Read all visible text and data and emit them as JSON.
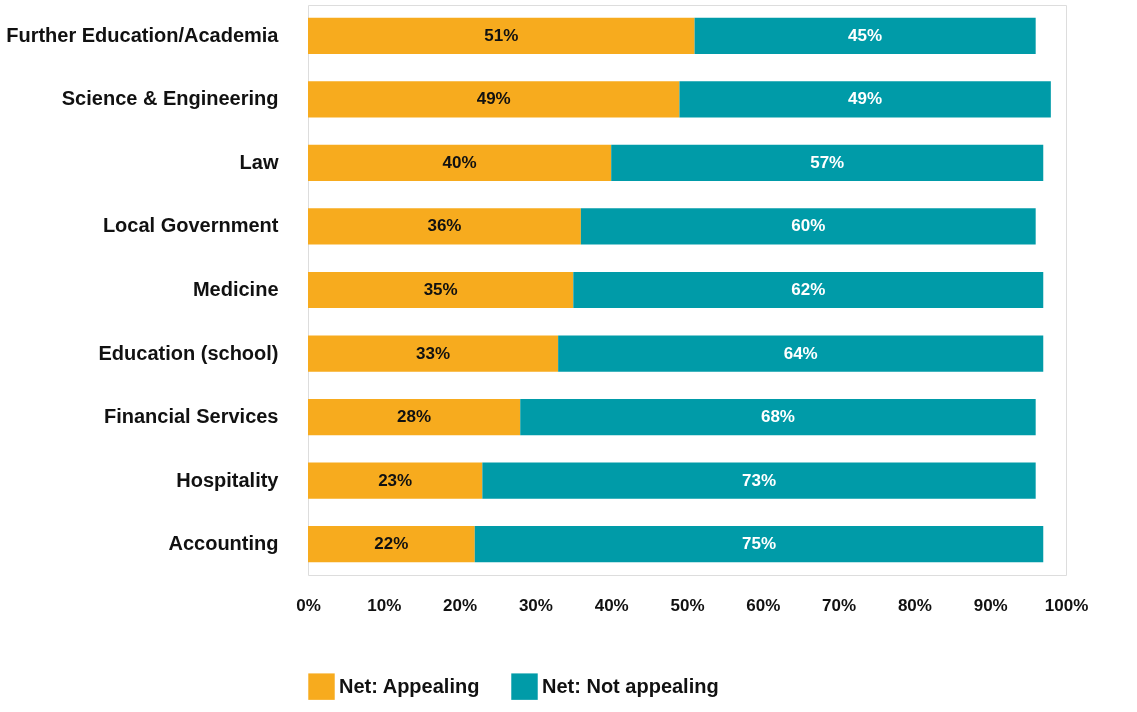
{
  "chart_data": {
    "type": "bar",
    "orientation": "horizontal",
    "stacked": true,
    "categories": [
      "Further Education/Academia",
      "Science & Engineering",
      "Law",
      "Local Government",
      "Medicine",
      "Education (school)",
      "Financial Services",
      "Hospitality",
      "Accounting"
    ],
    "series": [
      {
        "name": "Net: Appealing",
        "color": "#f7ab1e",
        "values": [
          51,
          49,
          40,
          36,
          35,
          33,
          28,
          23,
          22
        ],
        "value_labels": [
          "51%",
          "49%",
          "40%",
          "36%",
          "35%",
          "33%",
          "28%",
          "23%",
          "22%"
        ]
      },
      {
        "name": "Net: Not appealing",
        "color": "#009ba8",
        "values": [
          45,
          49,
          57,
          60,
          62,
          64,
          68,
          73,
          75
        ],
        "value_labels": [
          "45%",
          "49%",
          "57%",
          "60%",
          "62%",
          "64%",
          "68%",
          "73%",
          "75%"
        ]
      }
    ],
    "xlim": [
      0,
      100
    ],
    "xticks": [
      {
        "value": 0,
        "label": "0%"
      },
      {
        "value": 10,
        "label": "10%"
      },
      {
        "value": 20,
        "label": "20%"
      },
      {
        "value": 30,
        "label": "30%"
      },
      {
        "value": 40,
        "label": "40%"
      },
      {
        "value": 50,
        "label": "50%"
      },
      {
        "value": 60,
        "label": "60%"
      },
      {
        "value": 70,
        "label": "70%"
      },
      {
        "value": 80,
        "label": "80%"
      },
      {
        "value": 90,
        "label": "90%"
      },
      {
        "value": 100,
        "label": "100%"
      }
    ],
    "grid": false,
    "legend": "bottom"
  }
}
